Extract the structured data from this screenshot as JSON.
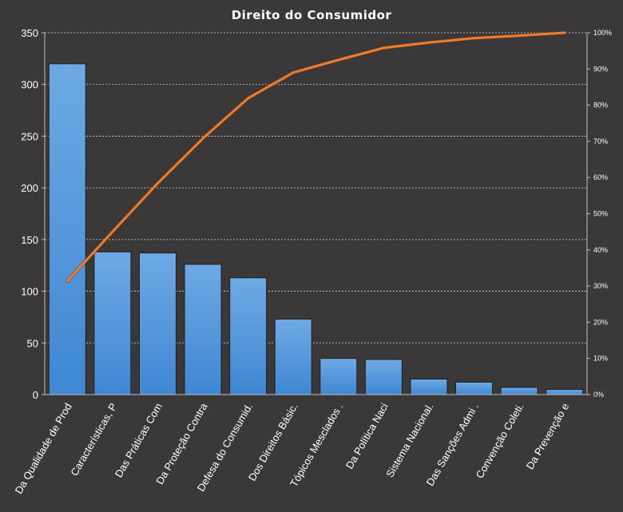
{
  "chart_data": {
    "type": "bar",
    "title": "Direito  do Consumidor",
    "categories": [
      "Da Qualidade de Prod",
      "Características, P",
      "Das Práticas Com",
      "Da Proteção Contra",
      "Defesa do Consumid.",
      "Dos Direitos Básic.",
      "Tópicos Mesclados .",
      "Da Política Naci",
      "Sistema Nacional.",
      "Das Sanções Admi .",
      "Convenção Coleti.",
      "Da Prevenção e"
    ],
    "series": [
      {
        "type": "bar",
        "values": [
          320,
          138,
          137,
          126,
          113,
          73,
          35,
          34,
          15,
          12,
          7,
          5
        ]
      },
      {
        "type": "line",
        "axis": "secondary",
        "values": [
          0.314,
          0.45,
          0.584,
          0.708,
          0.819,
          0.89,
          0.925,
          0.958,
          0.973,
          0.985,
          0.992,
          1.0
        ]
      }
    ],
    "yticks": [
      "0",
      "50",
      "100",
      "150",
      "200",
      "250",
      "300",
      "350"
    ],
    "ylim": [
      0,
      350
    ],
    "y2ticks": [
      "0%",
      "10%",
      "20%",
      "30%",
      "40%",
      "50%",
      "60%",
      "70%",
      "80%",
      "90%",
      "100%"
    ],
    "y2lim": [
      0,
      1
    ],
    "grid": true,
    "colors": {
      "background": "#3a3838",
      "bar": "#4a90d9",
      "bar_top": "#6ea8e2",
      "bar_edge": "#1f1f1f",
      "line": "#ed7d31",
      "grid": "#d9d9d9",
      "axis": "#bfbfbf",
      "text": "#ffffff"
    }
  }
}
